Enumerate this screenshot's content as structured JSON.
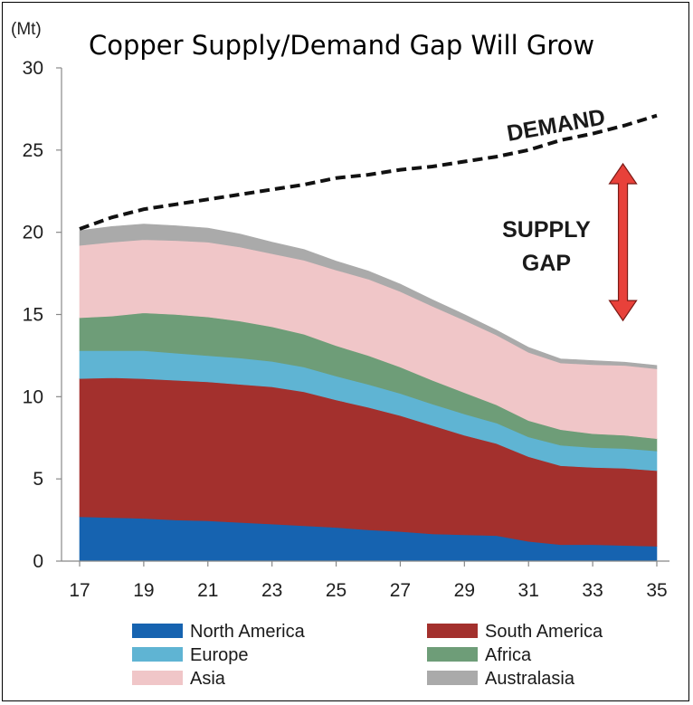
{
  "chart_data": {
    "type": "area",
    "title": "Copper Supply/Demand Gap Will Grow",
    "ylabel": "(Mt)",
    "xlabel": "",
    "x": [
      17,
      18,
      19,
      20,
      21,
      22,
      23,
      24,
      25,
      26,
      27,
      28,
      29,
      30,
      31,
      32,
      33,
      34,
      35
    ],
    "x_tick_labels": [
      "17",
      "19",
      "21",
      "23",
      "25",
      "27",
      "29",
      "31",
      "33",
      "35"
    ],
    "x_tick_values": [
      17,
      19,
      21,
      23,
      25,
      27,
      29,
      31,
      33,
      35
    ],
    "ylim": [
      0,
      30
    ],
    "y_ticks": [
      0,
      5,
      10,
      15,
      20,
      25,
      30
    ],
    "stacked": true,
    "series": [
      {
        "name": "North America",
        "color": "#1663b0",
        "values": [
          2.7,
          2.65,
          2.6,
          2.5,
          2.45,
          2.35,
          2.25,
          2.15,
          2.05,
          1.9,
          1.8,
          1.65,
          1.6,
          1.55,
          1.2,
          1.0,
          1.0,
          0.95,
          0.9
        ]
      },
      {
        "name": "South America",
        "color": "#a3302d",
        "values": [
          8.4,
          8.5,
          8.5,
          8.5,
          8.45,
          8.4,
          8.35,
          8.15,
          7.75,
          7.45,
          7.05,
          6.6,
          6.05,
          5.6,
          5.15,
          4.8,
          4.7,
          4.7,
          4.6
        ]
      },
      {
        "name": "Europe",
        "color": "#5fb4d3",
        "values": [
          1.7,
          1.65,
          1.7,
          1.65,
          1.6,
          1.6,
          1.55,
          1.5,
          1.45,
          1.4,
          1.35,
          1.3,
          1.3,
          1.25,
          1.2,
          1.25,
          1.2,
          1.2,
          1.2
        ]
      },
      {
        "name": "Africa",
        "color": "#6e9d78",
        "values": [
          2.0,
          2.1,
          2.3,
          2.35,
          2.35,
          2.25,
          2.1,
          2.0,
          1.85,
          1.75,
          1.6,
          1.45,
          1.3,
          1.1,
          1.0,
          0.95,
          0.85,
          0.8,
          0.75
        ]
      },
      {
        "name": "Asia",
        "color": "#f0c6c8",
        "values": [
          4.4,
          4.5,
          4.45,
          4.5,
          4.55,
          4.5,
          4.45,
          4.5,
          4.6,
          4.65,
          4.6,
          4.5,
          4.4,
          4.25,
          4.15,
          4.05,
          4.2,
          4.25,
          4.25
        ]
      },
      {
        "name": "Australasia",
        "color": "#aaaaaa",
        "values": [
          0.9,
          0.95,
          0.95,
          0.9,
          0.85,
          0.8,
          0.7,
          0.65,
          0.55,
          0.5,
          0.45,
          0.4,
          0.35,
          0.3,
          0.3,
          0.25,
          0.25,
          0.2,
          0.2
        ]
      }
    ],
    "demand": {
      "name": "DEMAND",
      "values": [
        20.2,
        20.9,
        21.4,
        21.7,
        22.0,
        22.3,
        22.6,
        22.9,
        23.3,
        23.5,
        23.8,
        24.0,
        24.3,
        24.6,
        25.0,
        25.6,
        26.0,
        26.5,
        27.1
      ]
    },
    "annotations": [
      "DEMAND",
      "SUPPLY",
      "GAP"
    ],
    "gap_arrow": {
      "color": "#e8413a",
      "x": 34,
      "from": 14.8,
      "to": 24.0
    },
    "legend": {
      "position": "bottom",
      "columns": 2
    },
    "grid": false
  }
}
